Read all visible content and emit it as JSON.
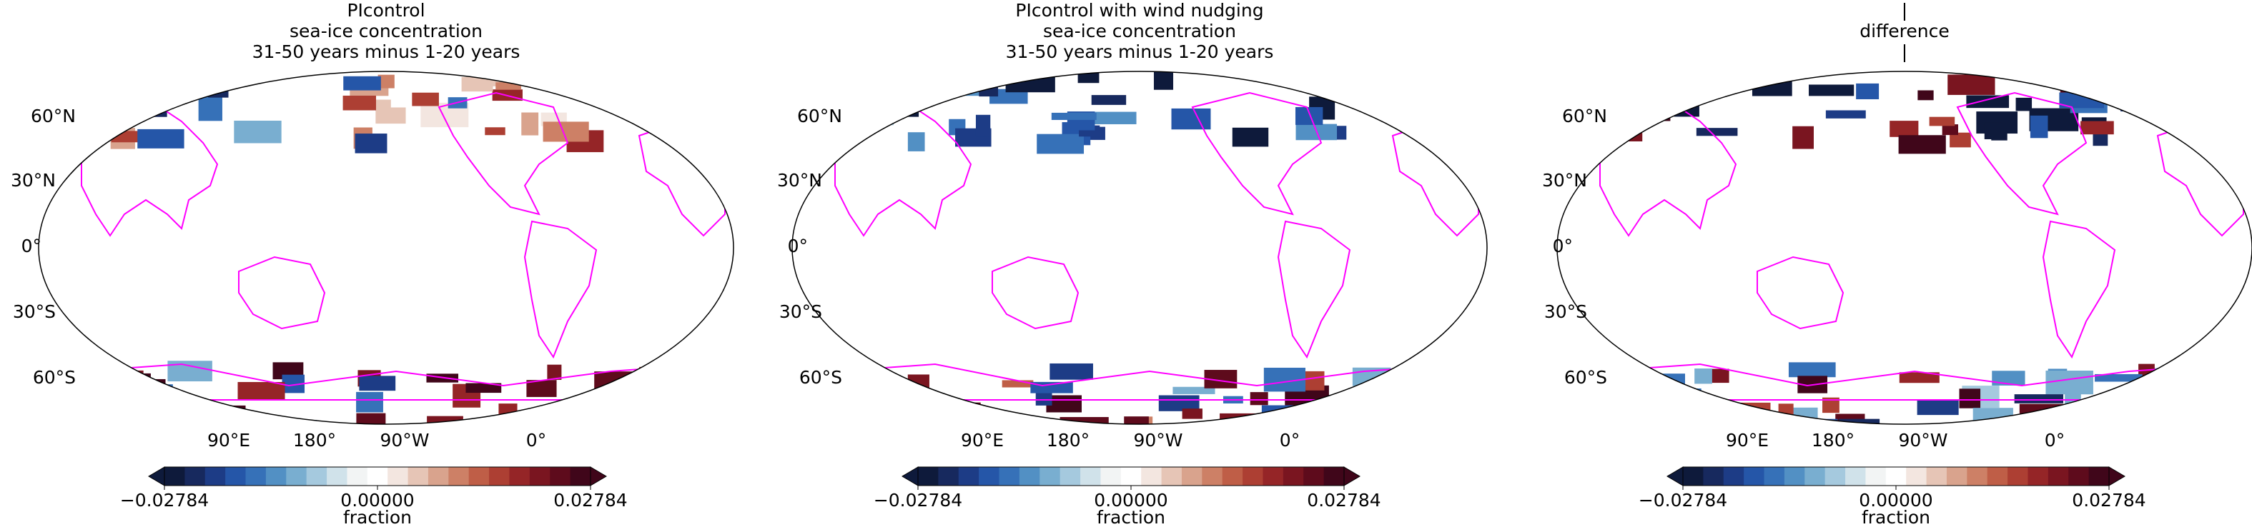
{
  "panels": [
    {
      "title": [
        "PIcontrol",
        "sea-ice concentration",
        "31-50 years minus 1-20 years"
      ],
      "lat_labels": [
        "60°N",
        "30°N",
        "0°",
        "30°S",
        "60°S"
      ],
      "lon_labels": [
        "90°E",
        "180°",
        "90°W",
        "0°"
      ],
      "colorbar": {
        "clim": [
          -0.02784,
          0.02784
        ],
        "ticks": [
          {
            "value": -0.02784,
            "label": "−0.02784"
          },
          {
            "value": 0,
            "label": "0.00000"
          },
          0.02784
        ],
        "label": "fraction"
      }
    },
    {
      "title": [
        "PIcontrol with wind nudging",
        "sea-ice concentration",
        "31-50 years minus 1-20 years"
      ],
      "lat_labels": [
        "60°N",
        "30°N",
        "0°",
        "30°S",
        "60°S"
      ],
      "lon_labels": [
        "90°E",
        "180°",
        "90°W",
        "0°"
      ],
      "colorbar": {
        "clim": [
          -0.02784,
          0.02784
        ],
        "ticks": [
          {
            "value": -0.02784,
            "label": "−0.02784"
          },
          {
            "value": 0,
            "label": "0.00000"
          },
          0.02784
        ],
        "label": "fraction"
      }
    },
    {
      "title": [
        "|",
        "difference",
        "|"
      ],
      "lat_labels": [
        "60°N",
        "30°N",
        "0°",
        "30°S",
        "60°S"
      ],
      "lon_labels": [
        "90°E",
        "180°",
        "90°W",
        "0°"
      ],
      "colorbar": {
        "clim": [
          -0.02784,
          0.02784
        ],
        "ticks": [
          {
            "value": -0.02784,
            "label": "−0.02784"
          },
          {
            "value": 0,
            "label": "0.00000"
          },
          0.02784
        ],
        "label": "fraction"
      }
    }
  ]
}
